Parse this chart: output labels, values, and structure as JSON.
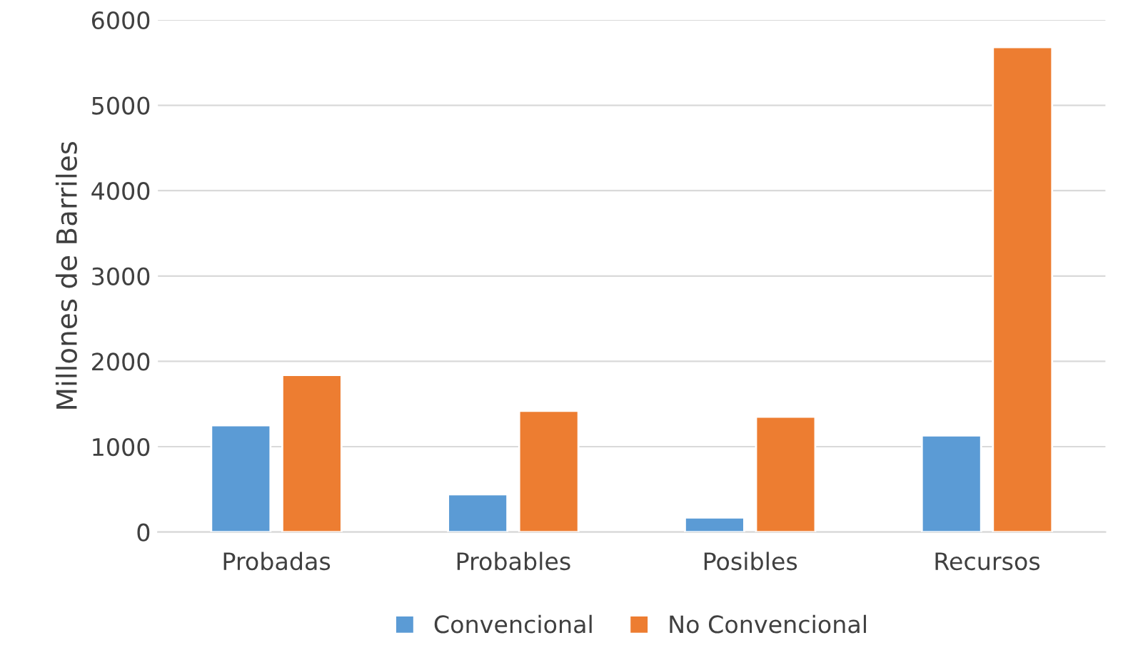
{
  "chart_data": {
    "type": "bar",
    "ylabel": "Millones de Barriles",
    "categories": [
      "Probadas",
      "Probables",
      "Posibles",
      "Recursos"
    ],
    "series": [
      {
        "name": "Convencional",
        "color": "#5b9bd5",
        "values": [
          1250,
          440,
          170,
          1130
        ]
      },
      {
        "name": "No Convencional",
        "color": "#ed7d31",
        "values": [
          1840,
          1420,
          1350,
          5680
        ]
      }
    ],
    "ylim": [
      0,
      6000
    ],
    "yticks": [
      0,
      1000,
      2000,
      3000,
      4000,
      5000,
      6000
    ],
    "grid": "y",
    "legend": "bottom"
  }
}
